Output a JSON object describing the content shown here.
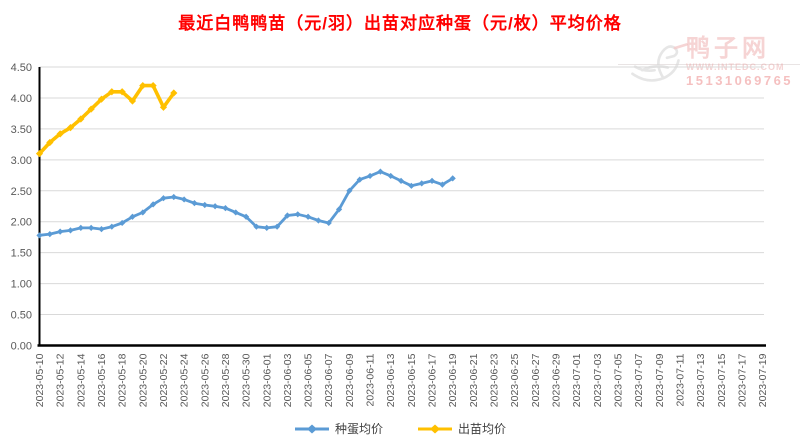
{
  "title": "最近白鸭鸭苗（元/羽）出苗对应种蛋（元/枚）平均价格",
  "colors": {
    "title": "#FF0000",
    "egg_series": "#5B9BD5",
    "duckling_series": "#FFC000",
    "gridline": "#D9D9D9",
    "axis_line": "#000000",
    "tick_label": "#595959"
  },
  "watermark": {
    "site_name": "鸭子网",
    "url": "WWW.INTEDC.COM",
    "phone": "15131069765"
  },
  "legend": {
    "items": [
      "种蛋均价",
      "出苗均价"
    ]
  },
  "chart_data": {
    "type": "line",
    "title": "最近白鸭鸭苗（元/羽）出苗对应种蛋（元/枚）平均价格",
    "xlabel": "",
    "ylabel": "",
    "ylim": [
      0,
      4.5
    ],
    "ytick_step": 0.5,
    "y_ticks": [
      "0.00",
      "0.50",
      "1.00",
      "1.50",
      "2.00",
      "2.50",
      "3.00",
      "3.50",
      "4.00",
      "4.50"
    ],
    "grid": "horizontal",
    "legend_position": "bottom",
    "x_labels": [
      "2023-05-10",
      "2023-05-12",
      "2023-05-14",
      "2023-05-16",
      "2023-05-18",
      "2023-05-20",
      "2023-05-22",
      "2023-05-24",
      "2023-05-26",
      "2023-05-28",
      "2023-05-30",
      "2023-06-01",
      "2023-06-03",
      "2023-06-05",
      "2023-06-07",
      "2023-06-09",
      "2023-06-11",
      "2023-06-13",
      "2023-06-15",
      "2023-06-17",
      "2023-06-19",
      "2023-06-21",
      "2023-06-23",
      "2023-06-25",
      "2023-06-27",
      "2023-06-29",
      "2023-07-01",
      "2023-07-03",
      "2023-07-05",
      "2023-07-07",
      "2023-07-09",
      "2023-07-11",
      "2023-07-13",
      "2023-07-15",
      "2023-07-17",
      "2023-07-19"
    ],
    "x_label_interval_days": 2,
    "series": [
      {
        "name": "种蛋均价",
        "color": "#5B9BD5",
        "first_point_date": "2023-05-10",
        "frequency": "daily",
        "values": [
          1.78,
          1.8,
          1.84,
          1.86,
          1.9,
          1.9,
          1.88,
          1.92,
          1.98,
          2.08,
          2.15,
          2.28,
          2.38,
          2.4,
          2.36,
          2.3,
          2.27,
          2.25,
          2.22,
          2.15,
          2.08,
          1.92,
          1.9,
          1.92,
          2.1,
          2.12,
          2.08,
          2.02,
          1.98,
          2.2,
          2.5,
          2.68,
          2.74,
          2.81,
          2.74,
          2.66,
          2.58,
          2.62,
          2.66,
          2.6,
          2.7
        ]
      },
      {
        "name": "出苗均价",
        "color": "#FFC000",
        "first_point_date": "2023-05-10",
        "frequency": "daily",
        "values": [
          3.1,
          3.28,
          3.42,
          3.52,
          3.66,
          3.82,
          3.98,
          4.1,
          4.1,
          3.95,
          4.2,
          4.2,
          3.85,
          4.08
        ]
      }
    ]
  }
}
